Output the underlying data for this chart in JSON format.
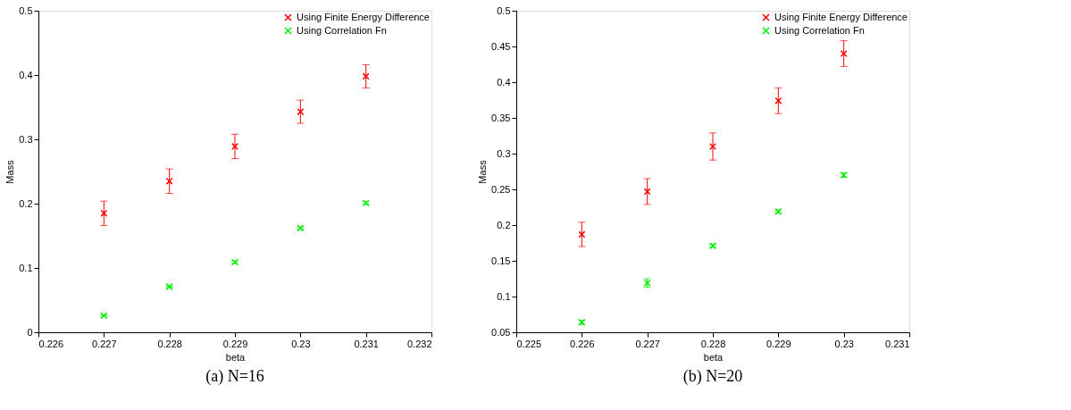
{
  "chart_data": [
    {
      "type": "scatter",
      "xlabel": "beta",
      "ylabel": "Mass",
      "annotations": [
        "(a) N=16"
      ],
      "x": [
        0.227,
        0.228,
        0.229,
        0.23,
        0.231
      ],
      "series": [
        {
          "name": "Using Finite Energy Difference",
          "color": "#ff0000",
          "marker": "cross",
          "values": [
            0.185,
            0.235,
            0.289,
            0.343,
            0.398
          ],
          "errors": [
            0.019,
            0.019,
            0.019,
            0.018,
            0.018
          ]
        },
        {
          "name": "Using Correlation Fn",
          "color": "#00ee00",
          "marker": "cross",
          "values": [
            0.026,
            0.071,
            0.109,
            0.162,
            0.201
          ],
          "errors": [
            0.001,
            0.001,
            0.002,
            0.002,
            0.002
          ]
        }
      ],
      "xlim": [
        0.226,
        0.232
      ],
      "xticks": [
        0.226,
        0.227,
        0.228,
        0.229,
        0.23,
        0.231,
        0.232
      ],
      "ylim": [
        0,
        0.5
      ],
      "yticks": [
        0,
        0.1,
        0.2,
        0.3,
        0.4,
        0.5
      ],
      "grid": false,
      "legend": "top right"
    },
    {
      "type": "scatter",
      "xlabel": "beta",
      "ylabel": "Mass",
      "annotations": [
        "(b) N=20"
      ],
      "x": [
        0.226,
        0.227,
        0.228,
        0.229,
        0.23
      ],
      "series": [
        {
          "name": "Using Finite Energy Difference",
          "color": "#ff0000",
          "marker": "cross",
          "values": [
            0.187,
            0.247,
            0.31,
            0.374,
            0.44
          ],
          "errors": [
            0.017,
            0.018,
            0.019,
            0.018,
            0.018
          ]
        },
        {
          "name": "Using Correlation Fn",
          "color": "#00ee00",
          "marker": "cross",
          "values": [
            0.064,
            0.119,
            0.171,
            0.219,
            0.27
          ],
          "errors": [
            0.003,
            0.006,
            0.002,
            0.002,
            0.003
          ]
        }
      ],
      "xlim": [
        0.225,
        0.231
      ],
      "xticks": [
        0.225,
        0.226,
        0.227,
        0.228,
        0.229,
        0.23,
        0.231
      ],
      "ylim": [
        0.05,
        0.5
      ],
      "yticks": [
        0.05,
        0.1,
        0.15,
        0.2,
        0.25,
        0.3,
        0.35,
        0.4,
        0.45,
        0.5
      ],
      "grid": false,
      "legend": "top right"
    }
  ]
}
